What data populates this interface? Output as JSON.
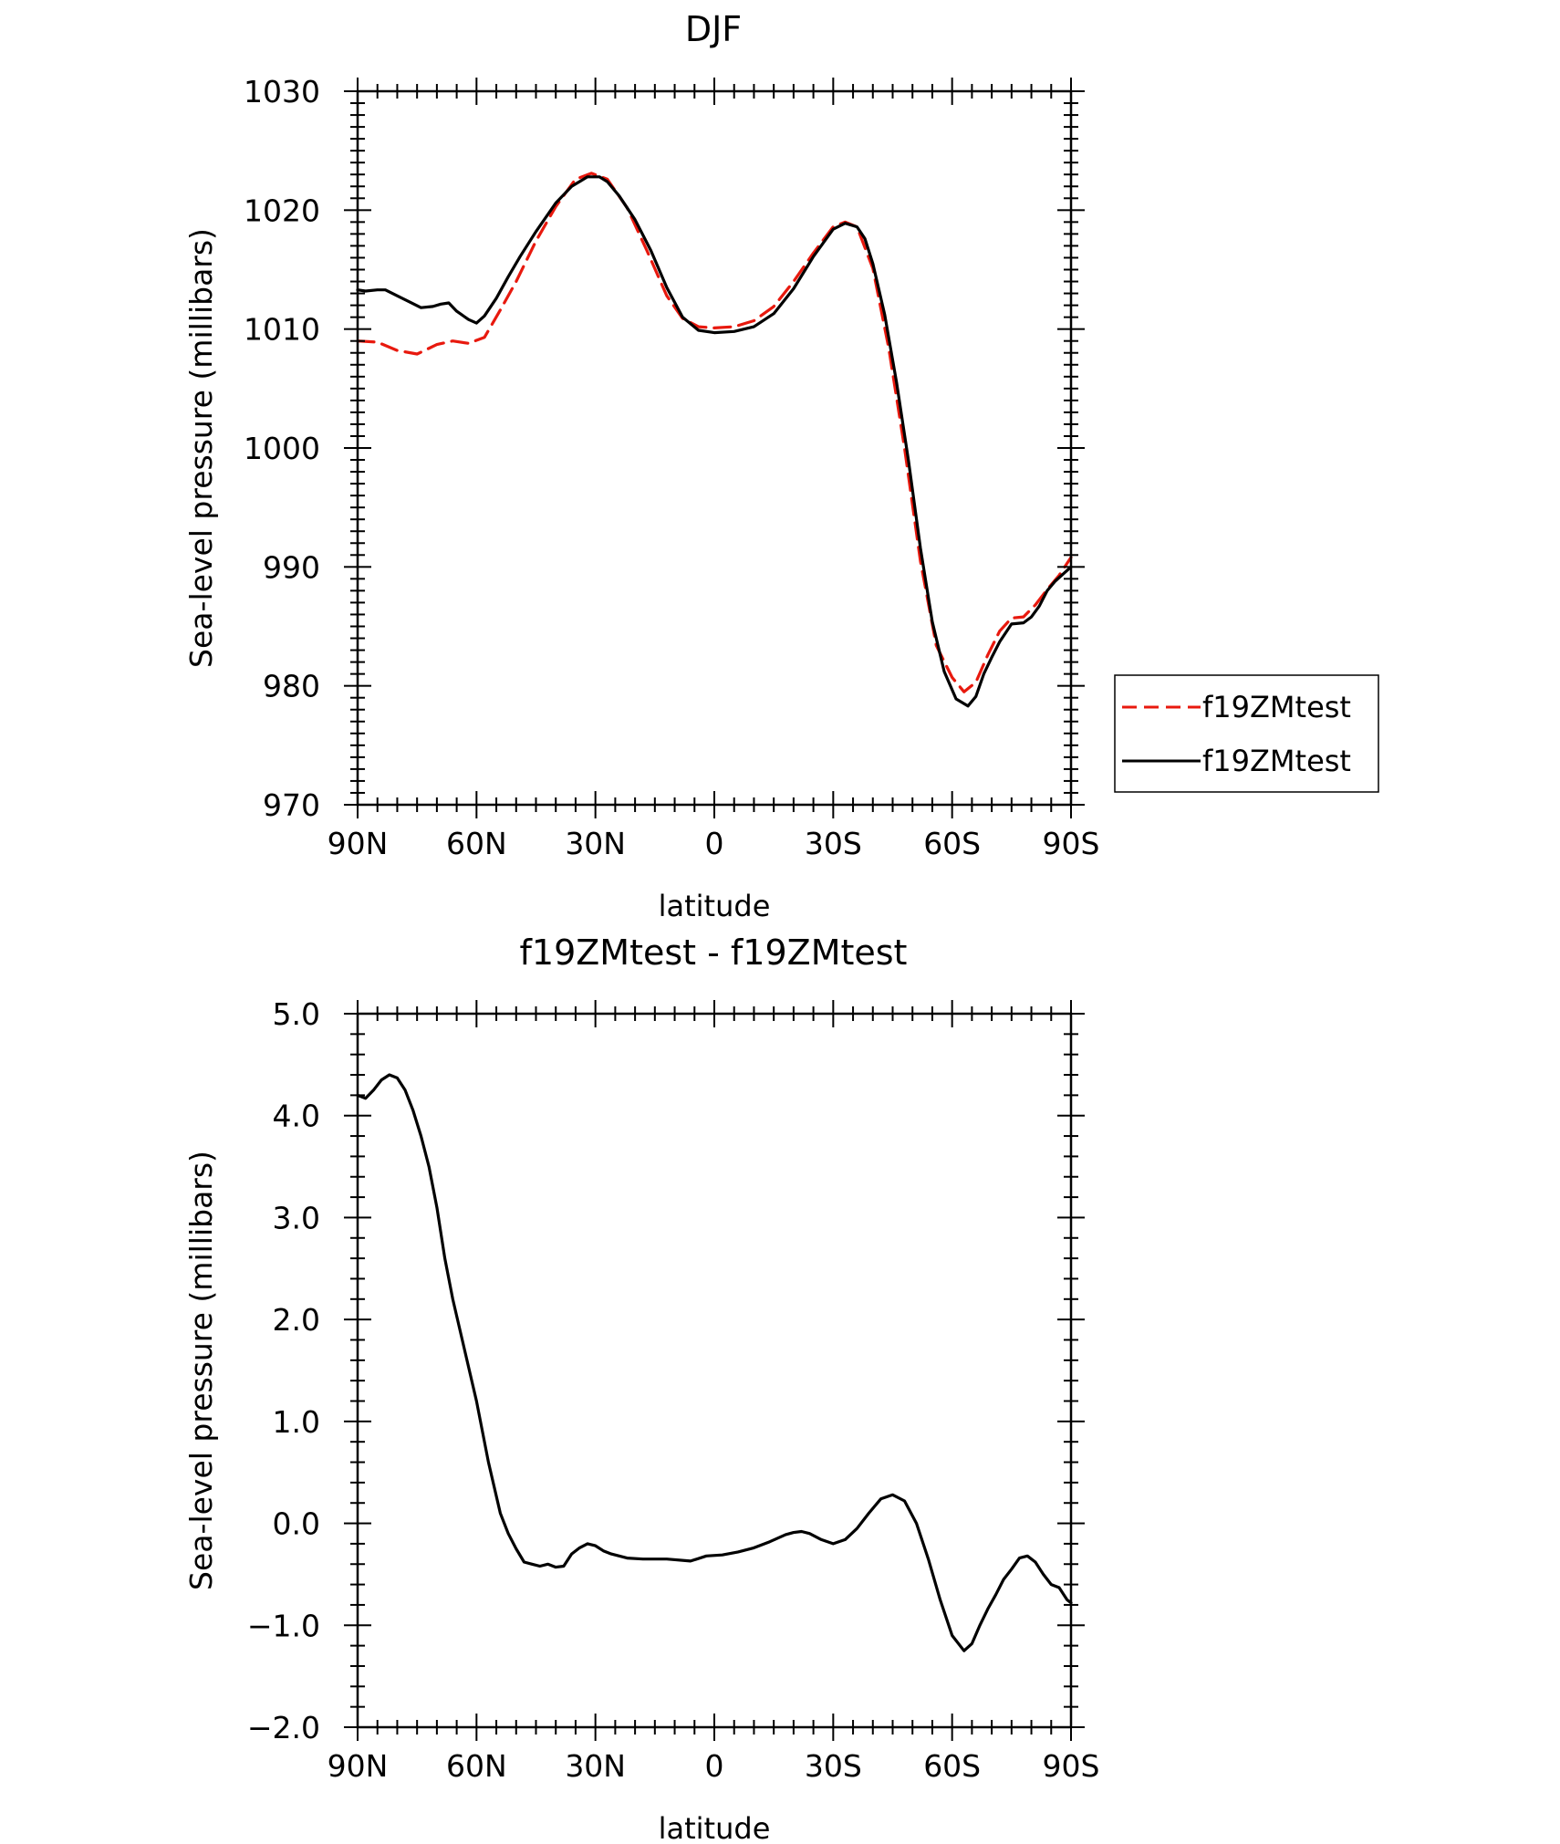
{
  "chart_data": [
    {
      "type": "line",
      "title": "DJF",
      "xlabel": "latitude",
      "ylabel": "Sea-level pressure (millibars)",
      "xlim": [
        90,
        -90
      ],
      "ylim": [
        970,
        1030
      ],
      "x_ticks": [
        {
          "value": 90,
          "label": "90N"
        },
        {
          "value": 60,
          "label": "60N"
        },
        {
          "value": 30,
          "label": "30N"
        },
        {
          "value": 0,
          "label": "0"
        },
        {
          "value": -30,
          "label": "30S"
        },
        {
          "value": -60,
          "label": "60S"
        },
        {
          "value": -90,
          "label": "90S"
        }
      ],
      "y_ticks": [
        {
          "value": 970,
          "label": "970"
        },
        {
          "value": 980,
          "label": "980"
        },
        {
          "value": 990,
          "label": "990"
        },
        {
          "value": 1000,
          "label": "1000"
        },
        {
          "value": 1010,
          "label": "1010"
        },
        {
          "value": 1020,
          "label": "1020"
        },
        {
          "value": 1030,
          "label": "1030"
        }
      ],
      "legend": {
        "placement": "right"
      },
      "series": [
        {
          "name": "f19ZMtest",
          "color": "#e8190e",
          "dash": "dashed",
          "x": [
            90,
            85,
            80,
            75,
            70,
            66,
            62,
            58,
            54,
            50,
            45,
            40,
            35,
            31,
            27,
            22,
            17,
            12,
            8,
            4,
            0,
            -5,
            -10,
            -15,
            -20,
            -25,
            -30,
            -33,
            -36,
            -40,
            -44,
            -48,
            -52,
            -56,
            -60,
            -63,
            -66,
            -69,
            -72,
            -75,
            -78,
            -81,
            -84,
            -87,
            -90
          ],
          "y": [
            1009.0,
            1008.9,
            1008.2,
            1007.9,
            1008.7,
            1009.0,
            1008.8,
            1009.3,
            1011.6,
            1014.0,
            1017.4,
            1020.3,
            1022.6,
            1023.1,
            1022.6,
            1020.2,
            1016.6,
            1012.8,
            1010.9,
            1010.2,
            1010.1,
            1010.2,
            1010.7,
            1011.9,
            1014.0,
            1016.4,
            1018.6,
            1019.0,
            1018.6,
            1015.1,
            1008.4,
            1000.0,
            990.5,
            983.4,
            980.7,
            979.5,
            980.3,
            982.6,
            984.6,
            985.7,
            985.8,
            986.8,
            988.1,
            989.3,
            990.8
          ]
        },
        {
          "name": "f19ZMtest",
          "color": "#000000",
          "dash": "solid",
          "x": [
            90,
            88,
            85,
            83,
            80,
            77,
            74,
            71,
            69,
            67,
            65,
            62,
            60,
            58,
            55,
            52,
            49,
            45,
            40,
            36,
            32,
            29,
            27,
            24,
            20,
            16,
            12,
            8,
            4,
            0,
            -5,
            -10,
            -15,
            -20,
            -25,
            -30,
            -33,
            -36,
            -38,
            -40,
            -43,
            -46,
            -49,
            -52,
            -55,
            -58,
            -61,
            -64,
            -66,
            -68,
            -70,
            -72,
            -75,
            -78,
            -80,
            -82,
            -84,
            -86,
            -88,
            -90
          ],
          "y": [
            1013.3,
            1013.2,
            1013.3,
            1013.3,
            1012.8,
            1012.3,
            1011.8,
            1011.9,
            1012.1,
            1012.2,
            1011.5,
            1010.8,
            1010.5,
            1011.1,
            1012.6,
            1014.4,
            1016.1,
            1018.2,
            1020.6,
            1022.0,
            1022.8,
            1022.8,
            1022.4,
            1021.2,
            1019.2,
            1016.6,
            1013.5,
            1011.0,
            1009.9,
            1009.7,
            1009.8,
            1010.2,
            1011.3,
            1013.4,
            1016.1,
            1018.4,
            1018.9,
            1018.6,
            1017.6,
            1015.5,
            1011.2,
            1005.5,
            998.9,
            991.6,
            985.4,
            981.2,
            978.9,
            978.3,
            979.1,
            981.0,
            982.4,
            983.7,
            985.2,
            985.3,
            985.8,
            986.7,
            988.0,
            988.8,
            989.4,
            990.0
          ]
        }
      ]
    },
    {
      "type": "line",
      "title": "f19ZMtest - f19ZMtest",
      "xlabel": "latitude",
      "ylabel": "Sea-level pressure (millibars)",
      "xlim": [
        90,
        -90
      ],
      "ylim": [
        -2.0,
        5.0
      ],
      "x_ticks": [
        {
          "value": 90,
          "label": "90N"
        },
        {
          "value": 60,
          "label": "60N"
        },
        {
          "value": 30,
          "label": "30N"
        },
        {
          "value": 0,
          "label": "0"
        },
        {
          "value": -30,
          "label": "30S"
        },
        {
          "value": -60,
          "label": "60S"
        },
        {
          "value": -90,
          "label": "90S"
        }
      ],
      "y_ticks": [
        {
          "value": -2.0,
          "label": "−2.0"
        },
        {
          "value": -1.0,
          "label": "−1.0"
        },
        {
          "value": 0.0,
          "label": "0.0"
        },
        {
          "value": 1.0,
          "label": "1.0"
        },
        {
          "value": 2.0,
          "label": "2.0"
        },
        {
          "value": 3.0,
          "label": "3.0"
        },
        {
          "value": 4.0,
          "label": "4.0"
        },
        {
          "value": 5.0,
          "label": "5.0"
        }
      ],
      "series": [
        {
          "color": "#000000",
          "dash": "solid",
          "x": [
            90,
            88,
            86,
            84,
            82,
            80,
            78,
            76,
            74,
            72,
            70,
            68,
            66,
            63,
            60,
            57,
            54,
            52,
            50,
            48,
            46,
            44,
            42,
            40,
            38,
            36,
            34,
            32,
            30,
            28,
            26,
            24,
            22,
            18,
            12,
            6,
            2,
            -2,
            -6,
            -10,
            -14,
            -18,
            -20,
            -22,
            -24,
            -27,
            -30,
            -33,
            -36,
            -39,
            -42,
            -45,
            -48,
            -51,
            -54,
            -57,
            -60,
            -63,
            -65,
            -67,
            -69,
            -71,
            -73,
            -75,
            -77,
            -79,
            -81,
            -83,
            -85,
            -87,
            -89,
            -90
          ],
          "y": [
            4.2,
            4.17,
            4.25,
            4.35,
            4.4,
            4.37,
            4.25,
            4.05,
            3.8,
            3.5,
            3.1,
            2.6,
            2.2,
            1.7,
            1.2,
            0.6,
            0.1,
            -0.1,
            -0.25,
            -0.38,
            -0.4,
            -0.42,
            -0.4,
            -0.43,
            -0.42,
            -0.3,
            -0.24,
            -0.2,
            -0.22,
            -0.27,
            -0.3,
            -0.32,
            -0.34,
            -0.35,
            -0.35,
            -0.37,
            -0.32,
            -0.31,
            -0.28,
            -0.24,
            -0.18,
            -0.11,
            -0.09,
            -0.08,
            -0.1,
            -0.16,
            -0.2,
            -0.16,
            -0.05,
            0.1,
            0.24,
            0.28,
            0.22,
            0.0,
            -0.35,
            -0.75,
            -1.1,
            -1.25,
            -1.18,
            -1.0,
            -0.84,
            -0.7,
            -0.55,
            -0.45,
            -0.34,
            -0.32,
            -0.38,
            -0.5,
            -0.6,
            -0.63,
            -0.75,
            -0.78
          ]
        }
      ]
    }
  ]
}
